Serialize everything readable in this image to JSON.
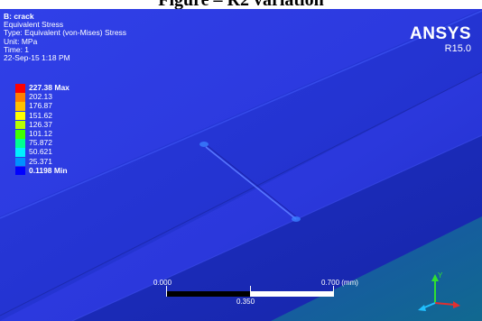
{
  "caption": "Figure – R2 variation",
  "result": {
    "title": "B: crack",
    "quantity": "Equivalent Stress",
    "type": "Type: Equivalent (von-Mises) Stress",
    "unit": "Unit: MPa",
    "time": "Time: 1",
    "date": "22-Sep-15 1:18 PM"
  },
  "legend": [
    {
      "label": "227.38 Max",
      "color": "#ff0000",
      "bold": true
    },
    {
      "label": "202.13",
      "color": "#ff8000"
    },
    {
      "label": "176.87",
      "color": "#ffc000"
    },
    {
      "label": "151.62",
      "color": "#ffff00"
    },
    {
      "label": "126.37",
      "color": "#b8ff00"
    },
    {
      "label": "101.12",
      "color": "#40ff00"
    },
    {
      "label": "75.872",
      "color": "#00ff90"
    },
    {
      "label": "50.621",
      "color": "#00f0ff"
    },
    {
      "label": "25.371",
      "color": "#0090ff"
    },
    {
      "label": "0.1198 Min",
      "color": "#0000ff",
      "bold": true
    }
  ],
  "brand": {
    "name": "ANSYS",
    "version": "R15.0"
  },
  "scale_bar": {
    "left": "0.000",
    "right": "0.700 (mm)",
    "middle": "0.350"
  },
  "colors": {
    "background": "#2a36e0",
    "accent": "#ffffff"
  }
}
